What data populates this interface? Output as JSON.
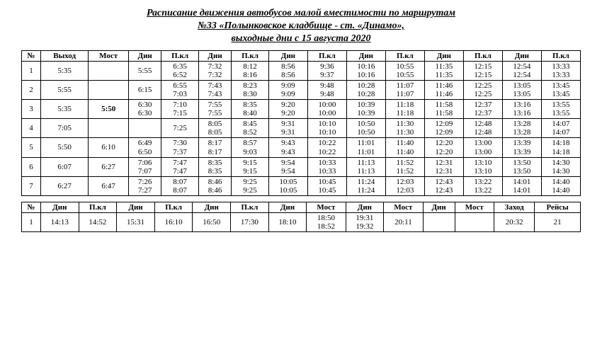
{
  "title_lines": [
    "Расписание движения автобусов малой вместимости по маршрутам",
    "№33 «Полынковское кладбище - ст. «Динамо»,",
    "выходные дни с 15 августа 2020"
  ],
  "table1": {
    "headers": [
      "№",
      "Выход",
      "Мост",
      "Дин",
      "П.кл",
      "Дин",
      "П.кл",
      "Дин",
      "П.кл",
      "Дин",
      "П.кл",
      "Дин",
      "П.кл",
      "Дин",
      "П.кл"
    ],
    "rows": [
      [
        "1",
        "5:35",
        "",
        "5:55",
        "6:35\n6:52",
        "7:32\n7:32",
        "8:12\n8:16",
        "8:56\n8:56",
        "9:36\n9:37",
        "10:16\n10:16",
        "10:55\n10:55",
        "11:35\n11:35",
        "12:15\n12:15",
        "12:54\n12:54",
        "13:33\n13:33"
      ],
      [
        "2",
        "5:55",
        "",
        "6:15",
        "6:55\n7:03",
        "7:43\n7:43",
        "8:23\n8:30",
        "9:09\n9:09",
        "9:48\n9:48",
        "10:28\n10:28",
        "11:07\n11:07",
        "11:46\n11:46",
        "12:25\n12:25",
        "13:05\n13:05",
        "13:45\n13:45"
      ],
      [
        "3",
        "5:35",
        "5:50",
        "6:30\n6:30",
        "7:10\n7:15",
        "7:55\n7:55",
        "8:35\n8:40",
        "9:20\n9:20",
        "10:00\n10:00",
        "10:39\n10:39",
        "11:18\n11:18",
        "11:58\n11:58",
        "12:37\n12:37",
        "13:16\n13:16",
        "13:55\n13:55"
      ],
      [
        "4",
        "7:05",
        "",
        "",
        "7:25",
        "8:05\n8:05",
        "8:45\n8:52",
        "9:31\n9:31",
        "10:10\n10:10",
        "10:50\n10:50",
        "11:30\n11:30",
        "12:09\n12:09",
        "12:48\n12:48",
        "13:28\n13:28",
        "14:07\n14:07"
      ],
      [
        "5",
        "5:50",
        "6:10",
        "6:49\n6:50",
        "7:30\n7:37",
        "8:17\n8:17",
        "8:57\n9:03",
        "9:43\n9:43",
        "10:22\n10:22",
        "11:01\n11:01",
        "11:40\n11:40",
        "12:20\n12:20",
        "13:00\n13:00",
        "13:39\n13:39",
        "14:18\n14:18"
      ],
      [
        "6",
        "6:07",
        "6:27",
        "7:06\n7:07",
        "7:47\n7:47",
        "8:35\n8:35",
        "9:15\n9:15",
        "9:54\n9:54",
        "10:33\n10:33",
        "11:13\n11:13",
        "11:52\n11:52",
        "12:31\n12:31",
        "13:10\n13:10",
        "13:50\n13:50",
        "14:30\n14:30"
      ],
      [
        "7",
        "6:27",
        "6:47",
        "7:26\n7:27",
        "8:07\n8:07",
        "8:46\n8:46",
        "9:25\n9:25",
        "10:05\n10:05",
        "10:45\n10:45",
        "11:24\n11:24",
        "12:03\n12:03",
        "12:43\n12:43",
        "13:22\n13:22",
        "14:01\n14:01",
        "14:40\n14:40"
      ]
    ],
    "bold_cells": [
      [
        2,
        2
      ]
    ]
  },
  "table2": {
    "headers": [
      "№",
      "Дин",
      "П.кл",
      "Дин",
      "П.кл",
      "Дин",
      "П.кл",
      "Дин",
      "Мост",
      "Дин",
      "Мост",
      "Дин",
      "Мост",
      "Заход",
      "Рейсы"
    ],
    "rows": [
      [
        "1",
        "14:13",
        "14:52",
        "15:31",
        "16:10",
        "16:50",
        "17:30",
        "18:10",
        "18:50\n18:52",
        "19:31\n19:32",
        "20:11",
        "",
        "",
        "20:32",
        "21"
      ]
    ]
  }
}
